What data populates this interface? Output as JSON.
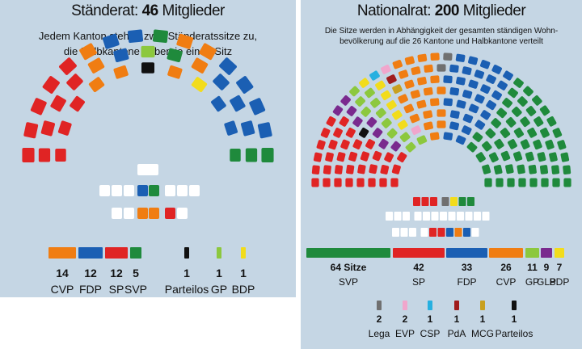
{
  "colors": {
    "CVP": "#f07d12",
    "FDP": "#1b5fb3",
    "SP": "#e02424",
    "SVP": "#1f8a3c",
    "GP": "#8cc83e",
    "BDP": "#f2dc1c",
    "GLP": "#7a2a8e",
    "Lega": "#707070",
    "EVP": "#f0a6cc",
    "CSP": "#26b0e0",
    "PdA": "#a01c1c",
    "MCG": "#c8a020",
    "Parteilos": "#111111",
    "empty": "#ffffff"
  },
  "left": {
    "title_prefix": "Ständerat: ",
    "title_num": "46",
    "title_suffix": " Mitglieder",
    "subtitle_1": "Jedem Kanton stehen zwei Ständeratssitze zu,",
    "subtitle_2": "die Halbkantone haben je einen Sitz"
  },
  "right": {
    "title_prefix": "Nationalrat: ",
    "title_num": "200",
    "title_suffix": " Mitglieder",
    "subtitle_1": "Die Sitze werden in Abhängigkeit der gesamten ständigen Wohn-",
    "subtitle_2": "bevölkerung auf die 26 Kantone und Halbkantone verteilt"
  },
  "chart_data": [
    {
      "type": "bar",
      "title": "Ständerat: 46 Mitglieder",
      "categories": [
        "CVP",
        "FDP",
        "SP",
        "SVP",
        "Parteilos",
        "GP",
        "BDP"
      ],
      "values": [
        14,
        12,
        12,
        5,
        1,
        1,
        1
      ],
      "labels": [
        "14",
        "12",
        "12",
        "5",
        "1",
        "1",
        "1"
      ],
      "total": 46
    },
    {
      "type": "bar",
      "title": "Nationalrat: 200 Mitglieder",
      "categories": [
        "SVP",
        "SP",
        "FDP",
        "CVP",
        "GP",
        "GLP",
        "BDP",
        "Lega",
        "EVP",
        "CSP",
        "PdA",
        "MCG",
        "Parteilos"
      ],
      "values": [
        64,
        42,
        33,
        26,
        11,
        9,
        7,
        2,
        2,
        1,
        1,
        1,
        1
      ],
      "labels": [
        "64 Sitze",
        "42",
        "33",
        "26",
        "11",
        "9",
        "7",
        "2",
        "2",
        "1",
        "1",
        "1",
        "1"
      ],
      "total": 200
    }
  ]
}
